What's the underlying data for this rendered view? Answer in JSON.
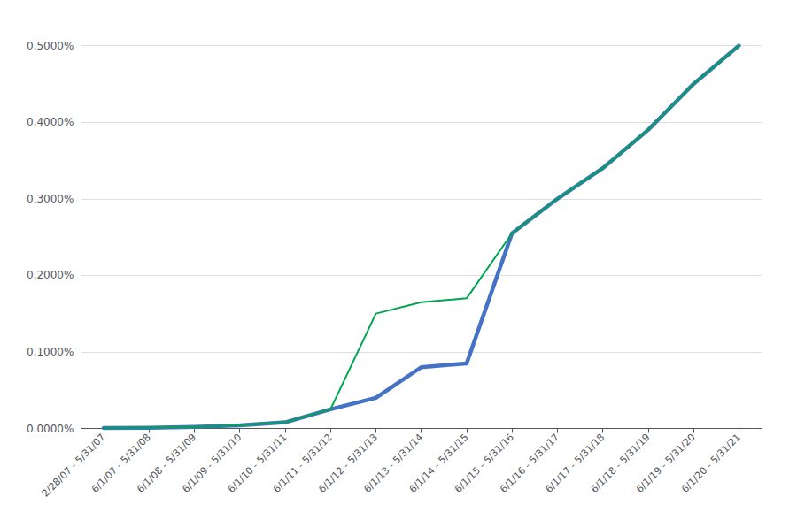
{
  "chart_data": {
    "type": "line",
    "categories": [
      "2/28/07 - 5/31/07",
      "6/1/07 - 5/31/08",
      "6/1/08 - 5/31/09",
      "6/1/09 - 5/31/10",
      "6/1/10 - 5/31/11",
      "6/1/11 - 5/31/12",
      "6/1/12 - 5/31/13",
      "6/1/13 - 5/31/14",
      "6/1/14 - 5/31/15",
      "6/1/15 - 5/31/16",
      "6/1/16 - 5/31/17",
      "6/1/17 - 5/31/18",
      "6/1/18 - 5/31/19",
      "6/1/19 - 5/31/20",
      "6/1/20 - 5/31/21"
    ],
    "series": [
      {
        "color": "#4472C4",
        "values": [
          5e-06,
          1e-05,
          2e-05,
          4e-05,
          8e-05,
          0.00025,
          0.0004,
          0.0008,
          0.00085,
          0.00255,
          0.003,
          0.0034,
          0.0039,
          0.0045,
          0.005
        ]
      },
      {
        "color": "#00A550",
        "values": [
          5e-06,
          1e-05,
          2e-05,
          4e-05,
          8e-05,
          0.00025,
          0.0015,
          0.00165,
          0.0017,
          0.00255,
          0.003,
          0.0034,
          0.0039,
          0.0045,
          0.005
        ]
      }
    ],
    "ylim": [
      0,
      0.00525
    ],
    "yticks": [
      {
        "value": 0.0,
        "label": "0.0000%"
      },
      {
        "value": 0.001,
        "label": "0.1000%"
      },
      {
        "value": 0.002,
        "label": "0.2000%"
      },
      {
        "value": 0.003,
        "label": "0.3000%"
      },
      {
        "value": 0.004,
        "label": "0.4000%"
      },
      {
        "value": 0.005,
        "label": "0.5000%"
      }
    ],
    "grid": true
  }
}
